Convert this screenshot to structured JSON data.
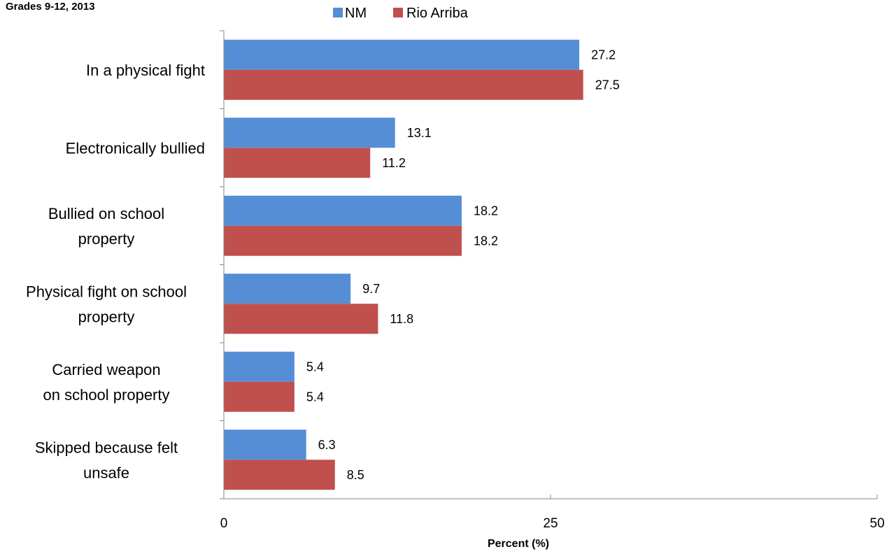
{
  "chart_data": {
    "type": "bar",
    "orientation": "horizontal",
    "subtitle": "Grades 9-12, 2013",
    "xlabel": "Percent (%)",
    "ylabel": "",
    "xlim": [
      0,
      50
    ],
    "xticks": [
      "0",
      "25",
      "50"
    ],
    "grid": false,
    "legend_position": "top",
    "categories": [
      [
        "In a physical fight"
      ],
      [
        "Electronically bullied"
      ],
      [
        "Bullied on school",
        "property"
      ],
      [
        "Physical fight on school",
        "property"
      ],
      [
        "Carried weapon",
        "on school property"
      ],
      [
        "Skipped because felt",
        "unsafe"
      ]
    ],
    "series": [
      {
        "name": "NM",
        "color": "#558ed5",
        "values": [
          27.2,
          13.1,
          18.2,
          9.7,
          5.4,
          6.3
        ]
      },
      {
        "name": "Rio Arriba",
        "color": "#c0504d",
        "values": [
          27.5,
          11.2,
          18.2,
          11.8,
          5.4,
          8.5
        ]
      }
    ]
  }
}
